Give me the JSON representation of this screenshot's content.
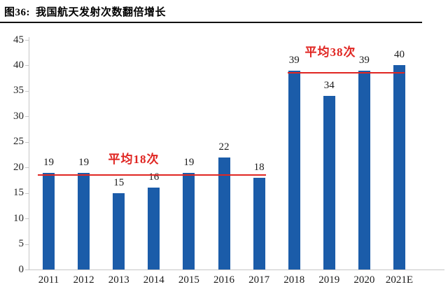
{
  "header": {
    "figure_label": "图36:",
    "title": "我国航天发射次数翻倍增长"
  },
  "chart_data": {
    "type": "bar",
    "title": "我国航天发射次数翻倍增长",
    "categories": [
      "2011",
      "2012",
      "2013",
      "2014",
      "2015",
      "2016",
      "2017",
      "2018",
      "2019",
      "2020",
      "2021E"
    ],
    "values": [
      19,
      19,
      15,
      16,
      19,
      22,
      18,
      39,
      34,
      39,
      40
    ],
    "xlabel": "",
    "ylabel": "",
    "ylim": [
      0,
      45
    ],
    "y_ticks": [
      0,
      5,
      10,
      15,
      20,
      25,
      30,
      35,
      40,
      45
    ],
    "grid": false,
    "legend": null,
    "bar_color": "#1b5ca9",
    "annotation_color": "#e02622",
    "annotations": [
      {
        "label": "平均18次",
        "level": 18.5,
        "from_year": "2011",
        "to_year": "2017"
      },
      {
        "label": "平均38次",
        "level": 38.5,
        "from_year": "2018",
        "to_year": "2021E"
      }
    ]
  }
}
